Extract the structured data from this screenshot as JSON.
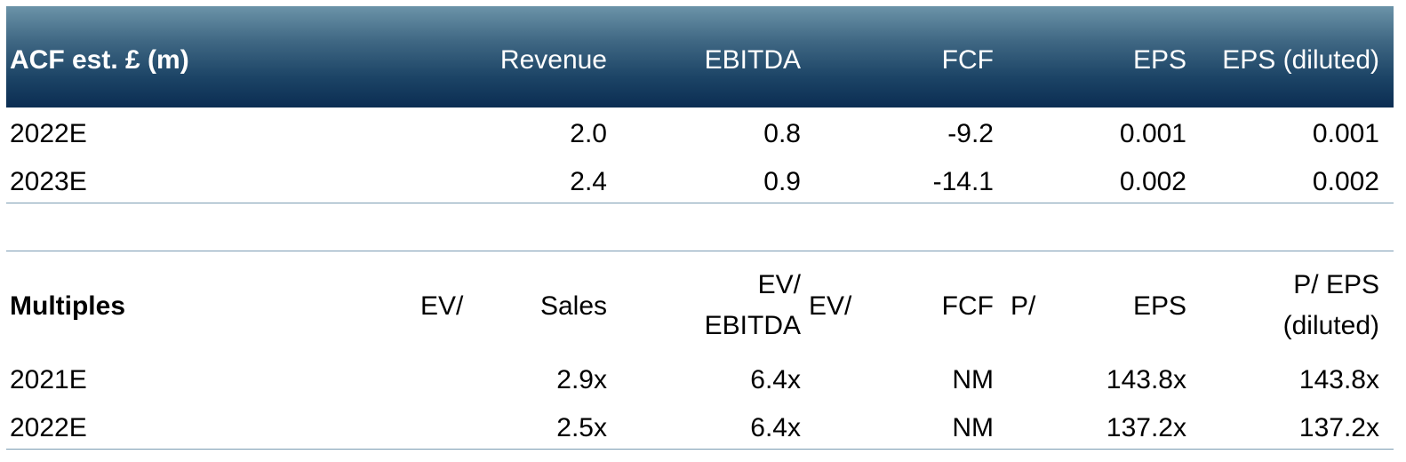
{
  "estimates": {
    "header": {
      "title": "ACF est. £ (m)",
      "revenue": "Revenue",
      "ebitda": "EBITDA",
      "fcf": "FCF",
      "eps": "EPS",
      "eps_diluted": "EPS (diluted)"
    },
    "rows": [
      {
        "year": "2022E",
        "revenue": "2.0",
        "ebitda": "0.8",
        "fcf": "-9.2",
        "eps": "0.001",
        "eps_diluted": "0.001"
      },
      {
        "year": "2023E",
        "revenue": "2.4",
        "ebitda": "0.9",
        "fcf": "-14.1",
        "eps": "0.002",
        "eps_diluted": "0.002"
      }
    ]
  },
  "multiples": {
    "header": {
      "title": "Multiples",
      "ev_prefix": "EV/",
      "sales": "Sales",
      "ev_ebitda_line1": "EV/",
      "ev_ebitda_line2": "EBITDA",
      "ev_fcf_prefix": "EV/",
      "fcf": "FCF",
      "pe_prefix": "P/",
      "eps": "EPS",
      "pe_diluted_line1": "P/ EPS",
      "pe_diluted_line2": "(diluted)"
    },
    "rows": [
      {
        "year": "2021E",
        "ev_sales": "2.9x",
        "ev_ebitda": "6.4x",
        "ev_fcf": "NM",
        "pe": "143.8x",
        "pe_diluted": "143.8x"
      },
      {
        "year": "2022E",
        "ev_sales": "2.5x",
        "ev_ebitda": "6.4x",
        "ev_fcf": "NM",
        "pe": "137.2x",
        "pe_diluted": "137.2x"
      }
    ]
  },
  "colors": {
    "header_top": "#6b93a8",
    "header_bottom": "#0b2d52",
    "rule": "#7a9cb3"
  }
}
